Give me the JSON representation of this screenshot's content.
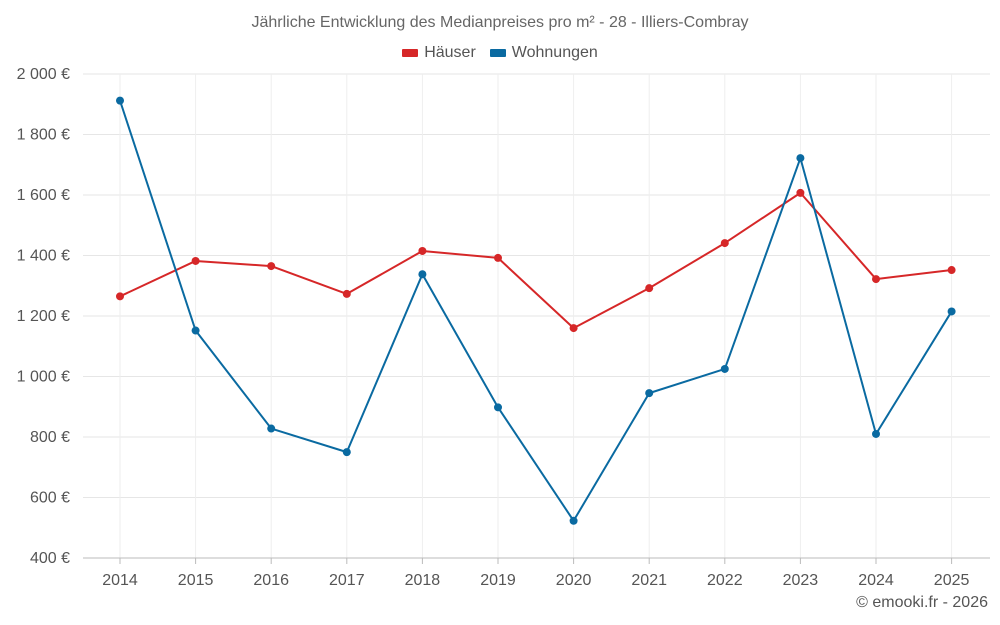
{
  "chart_data": {
    "type": "line",
    "title": "Jährliche Entwicklung des Medianpreises pro m² - 28 - Illiers-Combray",
    "xlabel": "",
    "ylabel": "",
    "ylim": [
      400,
      2000
    ],
    "yticks": [
      400,
      600,
      800,
      1000,
      1200,
      1400,
      1600,
      1800,
      2000
    ],
    "ytick_labels": [
      "400 €",
      "600 €",
      "800 €",
      "1 000 €",
      "1 200 €",
      "1 400 €",
      "1 600 €",
      "1 800 €",
      "2 000 €"
    ],
    "categories": [
      "2014",
      "2015",
      "2016",
      "2017",
      "2018",
      "2019",
      "2020",
      "2021",
      "2022",
      "2023",
      "2024",
      "2025"
    ],
    "grid": true,
    "legend_position": "top-center",
    "series": [
      {
        "name": "Häuser",
        "color": "#d62728",
        "values": [
          1265,
          1382,
          1365,
          1273,
          1415,
          1392,
          1160,
          1292,
          1441,
          1607,
          1322,
          1352
        ]
      },
      {
        "name": "Wohnungen",
        "color": "#0a6aa1",
        "values": [
          1912,
          1152,
          828,
          750,
          1338,
          898,
          523,
          945,
          1025,
          1722,
          810,
          1215
        ]
      }
    ]
  },
  "credit": "© emooki.fr - 2026"
}
